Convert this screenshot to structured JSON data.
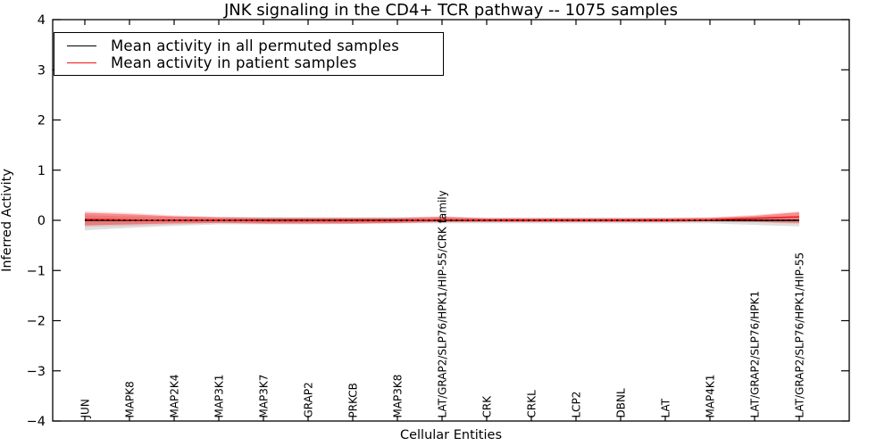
{
  "figure": {
    "background": "#ffffff"
  },
  "legend": {
    "position": "upper left",
    "entries": [
      {
        "label": "Mean activity in all permuted samples",
        "color": "#000000"
      },
      {
        "label": "Mean activity in patient samples",
        "color": "#f01414"
      }
    ]
  },
  "chart_data": {
    "type": "line",
    "title": "JNK signaling in the CD4+ TCR pathway -- 1075 samples",
    "xlabel": "Cellular Entities",
    "ylabel": "Inferred Activity",
    "ylim": [
      -4,
      4
    ],
    "yticks": [
      4,
      3,
      2,
      1,
      0,
      -1,
      -2,
      -3,
      -4
    ],
    "ytick_labels": [
      "4",
      "3",
      "2",
      "1",
      "0",
      "−1",
      "−2",
      "−3",
      "−4"
    ],
    "grid": false,
    "categories": [
      "JUN",
      "MAPK8",
      "MAP2K4",
      "MAP3K1",
      "MAP3K7",
      "GRAP2",
      "PRKCB",
      "MAP3K8",
      "LAT/GRAP2/SLP76/HPK1/HIP-55/CRK family",
      "CRK",
      "CRKL",
      "LCP2",
      "DBNL",
      "LAT",
      "MAP4K1",
      "LAT/GRAP2/SLP76/HPK1",
      "LAT/GRAP2/SLP76/HPK1/HIP-55"
    ],
    "series": [
      {
        "name": "Mean activity in all permuted samples",
        "color": "#000000",
        "style": "solid",
        "values": [
          0,
          0,
          0,
          0,
          0,
          0,
          0,
          0,
          0,
          0,
          0,
          0,
          0,
          0,
          0,
          0,
          0
        ]
      },
      {
        "name": "Mean activity in patient samples",
        "color": "#f01414",
        "style": "solid",
        "values": [
          0.02,
          0.01,
          0.0,
          0.0,
          -0.01,
          -0.01,
          -0.01,
          -0.01,
          0.01,
          0.0,
          0.0,
          0.0,
          0.0,
          0.0,
          0.01,
          0.04,
          0.07
        ]
      }
    ],
    "bands": [
      {
        "name": "permuted-samples-std-band",
        "color": "rgba(110,110,110,0.22)",
        "upper": [
          0.1,
          0.08,
          0.07,
          0.06,
          0.06,
          0.05,
          0.05,
          0.05,
          0.06,
          0.05,
          0.05,
          0.05,
          0.05,
          0.05,
          0.05,
          0.06,
          0.08
        ],
        "lower": [
          -0.2,
          -0.15,
          -0.11,
          -0.08,
          -0.08,
          -0.08,
          -0.07,
          -0.06,
          -0.06,
          -0.06,
          -0.06,
          -0.06,
          -0.06,
          -0.06,
          -0.06,
          -0.09,
          -0.12
        ]
      },
      {
        "name": "patient-samples-outer-band",
        "color": "rgba(240,30,30,0.16)",
        "upper": [
          0.18,
          0.15,
          0.1,
          0.07,
          0.06,
          0.06,
          0.06,
          0.06,
          0.08,
          0.05,
          0.05,
          0.05,
          0.05,
          0.05,
          0.06,
          0.11,
          0.18
        ],
        "lower": [
          -0.13,
          -0.11,
          -0.08,
          -0.06,
          -0.07,
          -0.07,
          -0.07,
          -0.06,
          -0.04,
          -0.04,
          -0.04,
          -0.04,
          -0.04,
          -0.04,
          -0.03,
          -0.04,
          -0.07
        ]
      },
      {
        "name": "patient-samples-std-band",
        "color": "rgba(240,30,30,0.42)",
        "upper": [
          0.15,
          0.12,
          0.08,
          0.06,
          0.05,
          0.05,
          0.05,
          0.05,
          0.07,
          0.04,
          0.04,
          0.04,
          0.04,
          0.04,
          0.05,
          0.09,
          0.16
        ],
        "lower": [
          -0.1,
          -0.08,
          -0.06,
          -0.05,
          -0.06,
          -0.06,
          -0.06,
          -0.05,
          -0.03,
          -0.03,
          -0.03,
          -0.03,
          -0.03,
          -0.03,
          -0.02,
          -0.03,
          -0.05
        ]
      }
    ],
    "zero_line": {
      "value": 0,
      "style": "dotted",
      "color": "#000000"
    }
  }
}
